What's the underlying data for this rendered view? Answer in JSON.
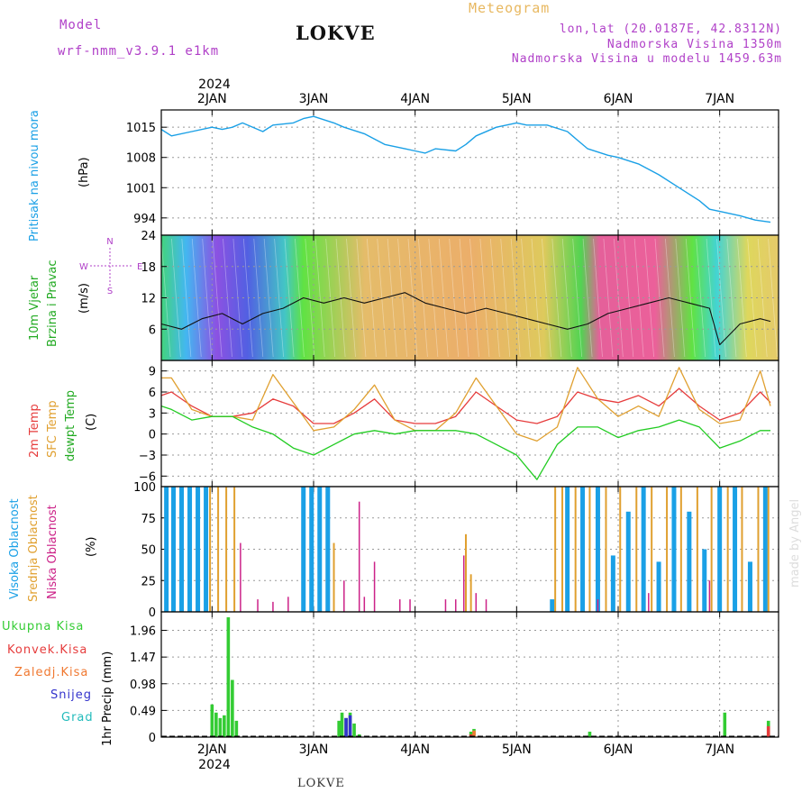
{
  "header": {
    "model_label": "Model",
    "model_name": "wrf-nmm_v3.9.1  e1km",
    "station": "LOKVE",
    "product": "Meteogram",
    "coords": "lon,lat (20.0187E, 42.8312N)",
    "elevation": "Nadmorska Visina 1350m",
    "model_elevation": "Nadmorska Visina u modelu 1459.63m",
    "footer_station": "LOKVE",
    "watermark": "made by Angel",
    "top_year": "2024",
    "bottom_year": "2024"
  },
  "colors": {
    "pressure": "#1aa0e6",
    "t2m": "#e63c3c",
    "tsfc": "#e0a030",
    "dewpt": "#22cc22",
    "high_cloud": "#1aa0e6",
    "mid_cloud": "#e0a030",
    "low_cloud": "#cc2288",
    "precip_total": "#33cc33",
    "precip_conv": "#e63c3c",
    "precip_frozen": "#f07830",
    "snow": "#3333cc",
    "hail": "#22bbbb"
  },
  "chart_data": [
    {
      "type": "line",
      "panel": "pressure",
      "ylabel": "Pritisak na nivou mora",
      "unit": "(hPa)",
      "x_ticks": [
        "2JAN",
        "3JAN",
        "4JAN",
        "5JAN",
        "6JAN",
        "7JAN"
      ],
      "y_ticks": [
        994,
        1001,
        1008,
        1015
      ],
      "ylim": [
        990,
        1019
      ],
      "x": [
        1.5,
        1.6,
        1.8,
        2.0,
        2.1,
        2.2,
        2.3,
        2.5,
        2.6,
        2.8,
        2.9,
        3.0,
        3.2,
        3.3,
        3.5,
        3.7,
        3.9,
        4.0,
        4.1,
        4.2,
        4.4,
        4.5,
        4.6,
        4.8,
        5.0,
        5.1,
        5.3,
        5.5,
        5.6,
        5.7,
        5.9,
        6.0,
        6.2,
        6.4,
        6.6,
        6.8,
        6.9,
        7.0,
        7.2,
        7.35,
        7.5
      ],
      "values": [
        1014.5,
        1013,
        1014,
        1015,
        1014.5,
        1015,
        1016,
        1014,
        1015.5,
        1016,
        1017,
        1017.5,
        1016,
        1015,
        1013.5,
        1011,
        1010,
        1009.5,
        1009,
        1010,
        1009.5,
        1011,
        1013,
        1015,
        1016,
        1015.5,
        1015.5,
        1014,
        1012,
        1010,
        1008.5,
        1008,
        1006.5,
        1004,
        1001,
        998,
        996,
        995.5,
        994.5,
        993.5,
        993
      ]
    },
    {
      "type": "line",
      "panel": "wind",
      "ylabel": "10m Vjetar Brzina i Pravac",
      "unit": "(m/s)",
      "y_ticks": [
        6,
        12,
        18,
        24
      ],
      "ylim": [
        0,
        24
      ],
      "compass": {
        "n": "N",
        "e": "E",
        "s": "S",
        "w": "W"
      },
      "x": [
        1.5,
        1.7,
        1.9,
        2.1,
        2.3,
        2.5,
        2.7,
        2.9,
        3.1,
        3.3,
        3.5,
        3.7,
        3.9,
        4.1,
        4.3,
        4.5,
        4.7,
        4.9,
        5.1,
        5.3,
        5.5,
        5.7,
        5.9,
        6.1,
        6.3,
        6.5,
        6.7,
        6.9,
        7.0,
        7.2,
        7.4,
        7.5
      ],
      "values": [
        7,
        6,
        8,
        9,
        7,
        9,
        10,
        12,
        11,
        12,
        11,
        12,
        13,
        11,
        10,
        9,
        10,
        9,
        8,
        7,
        6,
        7,
        9,
        10,
        11,
        12,
        11,
        10,
        3,
        7,
        8,
        7.5
      ]
    },
    {
      "type": "line",
      "panel": "temperature",
      "unit": "(C)",
      "y_ticks": [
        -6,
        -3,
        0,
        3,
        6,
        9
      ],
      "ylim": [
        -7.5,
        10.5
      ],
      "series": [
        {
          "name": "2m Temp",
          "x": [
            1.5,
            1.6,
            1.8,
            2.0,
            2.2,
            2.4,
            2.6,
            2.8,
            3.0,
            3.2,
            3.4,
            3.6,
            3.8,
            4.0,
            4.2,
            4.4,
            4.6,
            4.8,
            5.0,
            5.2,
            5.4,
            5.6,
            5.8,
            6.0,
            6.2,
            6.4,
            6.6,
            6.8,
            7.0,
            7.2,
            7.4,
            7.5
          ],
          "values": [
            5.5,
            6,
            4,
            2.5,
            2.5,
            3,
            5,
            4,
            1.5,
            1.5,
            3,
            5,
            2,
            1.5,
            1.5,
            2.5,
            6,
            4,
            2,
            1.5,
            2.5,
            6,
            5,
            4.5,
            5.5,
            4,
            6.5,
            4,
            2,
            3,
            6,
            4.5
          ]
        },
        {
          "name": "SFC Temp",
          "x": [
            1.5,
            1.6,
            1.8,
            2.0,
            2.2,
            2.4,
            2.6,
            2.8,
            3.0,
            3.2,
            3.4,
            3.6,
            3.8,
            4.0,
            4.2,
            4.4,
            4.6,
            4.8,
            5.0,
            5.2,
            5.4,
            5.6,
            5.8,
            6.0,
            6.2,
            6.4,
            6.6,
            6.8,
            7.0,
            7.2,
            7.4,
            7.5
          ],
          "values": [
            8,
            8,
            3.5,
            2.5,
            2.5,
            2,
            8.5,
            4.5,
            0.5,
            1,
            3.5,
            7,
            2,
            0.5,
            0.5,
            3,
            8,
            4,
            0,
            -1,
            1,
            9.5,
            5,
            2.5,
            4,
            2.5,
            9.5,
            3.5,
            1.5,
            2,
            9,
            4
          ]
        },
        {
          "name": "dewpt Temp",
          "x": [
            1.5,
            1.6,
            1.8,
            2.0,
            2.2,
            2.4,
            2.6,
            2.8,
            3.0,
            3.2,
            3.4,
            3.6,
            3.8,
            4.0,
            4.2,
            4.4,
            4.6,
            4.8,
            5.0,
            5.2,
            5.4,
            5.6,
            5.8,
            6.0,
            6.2,
            6.4,
            6.6,
            6.8,
            7.0,
            7.2,
            7.4,
            7.5
          ],
          "values": [
            4,
            3.5,
            2,
            2.5,
            2.5,
            1,
            0,
            -2,
            -3,
            -1.5,
            0,
            0.5,
            0,
            0.5,
            0.5,
            0.5,
            0,
            -1.5,
            -3,
            -6.5,
            -1.5,
            1,
            1,
            -0.5,
            0.5,
            1,
            2,
            1,
            -2,
            -1,
            0.5,
            0.5
          ]
        }
      ]
    },
    {
      "type": "bar",
      "panel": "cloud",
      "unit": "(%)",
      "y_ticks": [
        0,
        25,
        50,
        75,
        100
      ],
      "ylim": [
        0,
        100
      ],
      "series": [
        {
          "name": "Visoka Oblacnost",
          "x": [
            1.55,
            1.62,
            1.7,
            1.78,
            1.86,
            1.94,
            2.9,
            2.98,
            3.06,
            3.14,
            5.35,
            5.5,
            5.65,
            5.8,
            5.95,
            6.1,
            6.25,
            6.4,
            6.55,
            6.7,
            6.85,
            7.0,
            7.15,
            7.3,
            7.45
          ],
          "values": [
            100,
            100,
            100,
            100,
            100,
            100,
            100,
            100,
            100,
            100,
            10,
            100,
            100,
            100,
            45,
            80,
            100,
            40,
            100,
            80,
            50,
            100,
            100,
            40,
            100
          ]
        },
        {
          "name": "Srednja Oblacnost",
          "x": [
            1.98,
            2.06,
            2.14,
            2.22,
            3.2,
            4.5,
            4.55,
            5.38,
            5.45,
            5.58,
            5.72,
            5.88,
            6.02,
            6.18,
            6.33,
            6.48,
            6.62,
            6.78,
            6.92,
            7.08,
            7.22,
            7.38,
            7.48
          ],
          "values": [
            100,
            100,
            100,
            100,
            55,
            62,
            30,
            100,
            100,
            100,
            100,
            100,
            100,
            100,
            100,
            100,
            100,
            100,
            100,
            100,
            100,
            100,
            100
          ]
        },
        {
          "name": "Niska Oblacnost",
          "x": [
            2.28,
            2.45,
            2.6,
            2.75,
            3.3,
            3.45,
            3.5,
            3.6,
            3.85,
            3.95,
            4.3,
            4.4,
            4.48,
            4.6,
            4.7,
            5.8,
            6.3,
            6.9
          ],
          "values": [
            55,
            10,
            8,
            12,
            25,
            88,
            12,
            40,
            10,
            10,
            10,
            10,
            45,
            15,
            10,
            10,
            15,
            25
          ]
        }
      ]
    },
    {
      "type": "bar",
      "panel": "precipitation",
      "ylabel": "1hr Precip",
      "unit": "(mm)",
      "y_ticks": [
        0,
        0.49,
        0.98,
        1.47,
        1.96
      ],
      "ylim": [
        0,
        2.3
      ],
      "series": [
        {
          "name": "Ukupna Kisa",
          "x": [
            2.0,
            2.04,
            2.08,
            2.12,
            2.16,
            2.2,
            2.24,
            3.25,
            3.28,
            3.32,
            3.36,
            3.4,
            3.45,
            4.55,
            4.58,
            5.72,
            7.05,
            7.48
          ],
          "values": [
            0.6,
            0.45,
            0.35,
            0.4,
            2.2,
            1.05,
            0.3,
            0.3,
            0.45,
            0.35,
            0.45,
            0.25,
            0.05,
            0.1,
            0.15,
            0.1,
            0.45,
            0.3
          ]
        },
        {
          "name": "Konvek.Kisa",
          "x": [
            4.55,
            7.48
          ],
          "values": [
            0.05,
            0.2
          ]
        },
        {
          "name": "Zaledj.Kisa",
          "x": [
            4.58
          ],
          "values": [
            0.12
          ]
        },
        {
          "name": "Snijeg",
          "x": [
            3.32,
            3.36
          ],
          "values": [
            0.35,
            0.4
          ]
        },
        {
          "name": "Grad",
          "x": [],
          "values": []
        }
      ]
    }
  ],
  "labels": {
    "pressure_name": "Pritisak na nivou mora",
    "pressure_unit": "(hPa)",
    "wind_name1": "10m Vjetar",
    "wind_name2": "Brzina i Pravac",
    "wind_unit": "(m/s)",
    "t2m": "2m Temp",
    "tsfc": "SFC Temp",
    "tdew": "dewpt Temp",
    "temp_unit": "(C)",
    "cl_high": "Visoka Oblacnost",
    "cl_mid": "Srednja Oblacnost",
    "cl_low": "Niska Oblacnost",
    "cloud_unit": "(%)",
    "pr_total": "Ukupna Kisa",
    "pr_conv": "Konvek.Kisa",
    "pr_frozen": "Zaledj.Kisa",
    "pr_snow": "Snijeg",
    "pr_hail": "Grad",
    "pr_unit": "1hr Precip (mm)"
  }
}
